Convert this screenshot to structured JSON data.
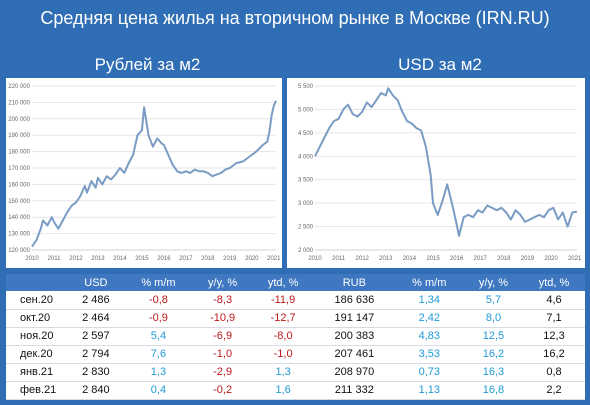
{
  "title": "Средняя цена жилья на вторичном рынке в Москве (IRN.RU)",
  "chart_data": [
    {
      "type": "line",
      "title": "Рублей за м2",
      "xlabels": [
        "2010",
        "2011",
        "2012",
        "2013",
        "2014",
        "2015",
        "2016",
        "2017",
        "2018",
        "2019",
        "2020",
        "2021"
      ],
      "yticks": [
        "120 000",
        "130 000",
        "140 000",
        "150 000",
        "160 000",
        "170 000",
        "180 000",
        "190 000",
        "200 000",
        "210 000",
        "220 000"
      ],
      "ylim": [
        120000,
        220000
      ],
      "x": [
        2010.0,
        2010.2,
        2010.4,
        2010.5,
        2010.7,
        2010.9,
        2011.0,
        2011.2,
        2011.4,
        2011.6,
        2011.8,
        2012.0,
        2012.2,
        2012.4,
        2012.5,
        2012.7,
        2012.9,
        2013.0,
        2013.2,
        2013.4,
        2013.6,
        2013.8,
        2014.0,
        2014.2,
        2014.4,
        2014.6,
        2014.8,
        2015.0,
        2015.1,
        2015.3,
        2015.5,
        2015.7,
        2015.9,
        2016.0,
        2016.2,
        2016.4,
        2016.6,
        2016.8,
        2017.0,
        2017.2,
        2017.4,
        2017.6,
        2017.8,
        2018.0,
        2018.2,
        2018.4,
        2018.6,
        2018.8,
        2019.0,
        2019.3,
        2019.6,
        2019.9,
        2020.2,
        2020.5,
        2020.7,
        2020.8,
        2020.9,
        2021.0,
        2021.1
      ],
      "values": [
        122000,
        126000,
        133000,
        138000,
        135000,
        140000,
        137000,
        133000,
        138000,
        143000,
        147000,
        149000,
        153000,
        159000,
        155000,
        162000,
        158000,
        164000,
        160000,
        165000,
        163000,
        166000,
        170000,
        167000,
        173000,
        178000,
        190000,
        193000,
        207000,
        190000,
        183000,
        188000,
        185000,
        184000,
        178000,
        172000,
        168000,
        167000,
        168000,
        167000,
        169000,
        168000,
        168000,
        167000,
        165000,
        166000,
        167000,
        169000,
        170000,
        173000,
        174000,
        177000,
        180000,
        184000,
        186000,
        192000,
        202000,
        208000,
        211000
      ]
    },
    {
      "type": "line",
      "title": "USD за м2",
      "xlabels": [
        "2010",
        "2011",
        "2012",
        "2013",
        "2014",
        "2015",
        "2016",
        "2017",
        "2018",
        "2019",
        "2020",
        "2021"
      ],
      "yticks": [
        "2 000",
        "2 500",
        "3 000",
        "3 500",
        "4 000",
        "4 500",
        "5 000",
        "5 500"
      ],
      "ylim": [
        2000,
        5500
      ],
      "x": [
        2010.0,
        2010.2,
        2010.4,
        2010.6,
        2010.8,
        2011.0,
        2011.2,
        2011.4,
        2011.6,
        2011.8,
        2012.0,
        2012.2,
        2012.4,
        2012.6,
        2012.8,
        2013.0,
        2013.1,
        2013.3,
        2013.5,
        2013.7,
        2013.9,
        2014.1,
        2014.3,
        2014.5,
        2014.7,
        2014.9,
        2015.0,
        2015.2,
        2015.4,
        2015.6,
        2015.8,
        2016.0,
        2016.1,
        2016.3,
        2016.5,
        2016.7,
        2016.9,
        2017.1,
        2017.3,
        2017.5,
        2017.7,
        2017.9,
        2018.1,
        2018.3,
        2018.5,
        2018.7,
        2018.9,
        2019.1,
        2019.3,
        2019.5,
        2019.7,
        2019.9,
        2020.1,
        2020.3,
        2020.5,
        2020.7,
        2020.9,
        2021.1
      ],
      "values": [
        4000,
        4200,
        4400,
        4600,
        4750,
        4800,
        5000,
        5100,
        4900,
        4850,
        4950,
        5150,
        5050,
        5200,
        5350,
        5300,
        5450,
        5300,
        5200,
        4950,
        4750,
        4700,
        4600,
        4550,
        4200,
        3600,
        3000,
        2750,
        3050,
        3400,
        3000,
        2550,
        2300,
        2700,
        2750,
        2700,
        2850,
        2800,
        2950,
        2900,
        2850,
        2900,
        2800,
        2650,
        2850,
        2750,
        2600,
        2650,
        2700,
        2750,
        2700,
        2850,
        2900,
        2650,
        2800,
        2500,
        2800,
        2820
      ]
    }
  ],
  "table": {
    "headers": [
      "",
      "USD",
      "% m/m",
      "y/y, %",
      "ytd, %",
      "RUB",
      "% m/m",
      "y/y, %",
      "ytd, %"
    ],
    "rows": [
      {
        "label": "сен.20",
        "usd": "2 486",
        "usd_mm": "-0,8",
        "usd_yy": "-8,3",
        "usd_ytd": "-11,9",
        "rub": "186 636",
        "rub_mm": "1,34",
        "rub_yy": "5,7",
        "rub_ytd": "4,6"
      },
      {
        "label": "окт.20",
        "usd": "2 464",
        "usd_mm": "-0,9",
        "usd_yy": "-10,9",
        "usd_ytd": "-12,7",
        "rub": "191 147",
        "rub_mm": "2,42",
        "rub_yy": "8,0",
        "rub_ytd": "7,1"
      },
      {
        "label": "ноя.20",
        "usd": "2 597",
        "usd_mm": "5,4",
        "usd_yy": "-6,9",
        "usd_ytd": "-8,0",
        "rub": "200 383",
        "rub_mm": "4,83",
        "rub_yy": "12,5",
        "rub_ytd": "12,3"
      },
      {
        "label": "дек.20",
        "usd": "2 794",
        "usd_mm": "7,6",
        "usd_yy": "-1,0",
        "usd_ytd": "-1,0",
        "rub": "207 461",
        "rub_mm": "3,53",
        "rub_yy": "16,2",
        "rub_ytd": "16,2"
      },
      {
        "label": "янв.21",
        "usd": "2 830",
        "usd_mm": "1,3",
        "usd_yy": "-2,9",
        "usd_ytd": "1,3",
        "rub": "208 970",
        "rub_mm": "0,73",
        "rub_yy": "16,3",
        "rub_ytd": "0,8"
      },
      {
        "label": "фев.21",
        "usd": "2 840",
        "usd_mm": "0,4",
        "usd_yy": "-0,2",
        "usd_ytd": "1,6",
        "rub": "211 332",
        "rub_mm": "1,13",
        "rub_yy": "16,8",
        "rub_ytd": "2,2"
      }
    ]
  },
  "colors": {
    "background": "#2f6db5",
    "line": "#7a9cc4",
    "negative": "#c0171b",
    "positive": "#1f9bd7",
    "header": "#3f78c1"
  }
}
